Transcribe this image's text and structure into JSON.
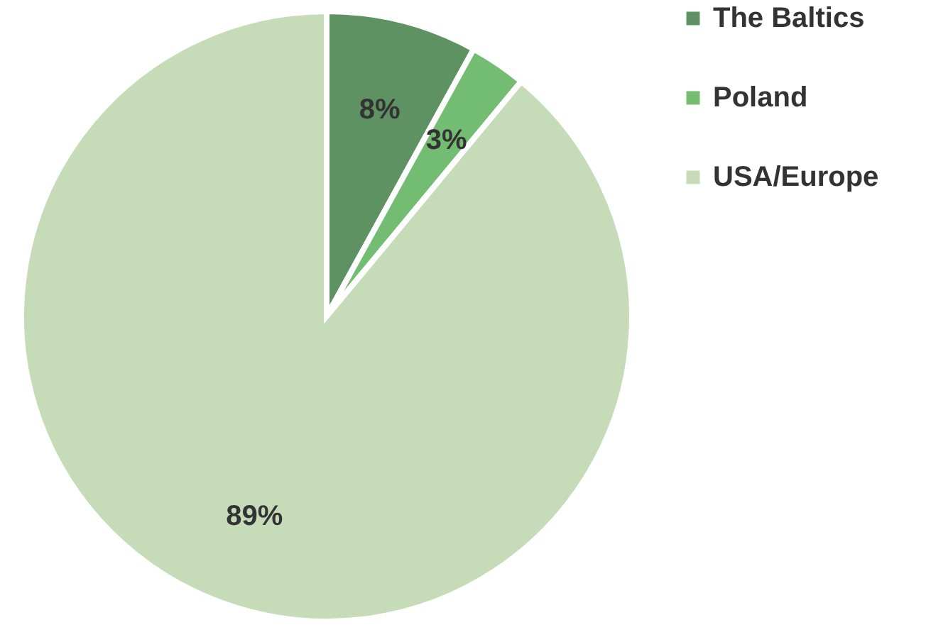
{
  "chart_data": {
    "type": "pie",
    "categories": [
      "The Baltics",
      "Poland",
      "USA/Europe"
    ],
    "values": [
      8,
      3,
      89
    ],
    "value_labels": [
      "8%",
      "3%",
      "89%"
    ],
    "colors": [
      "#5e9262",
      "#72bd72",
      "#c6dcb9"
    ],
    "legend": "right"
  }
}
